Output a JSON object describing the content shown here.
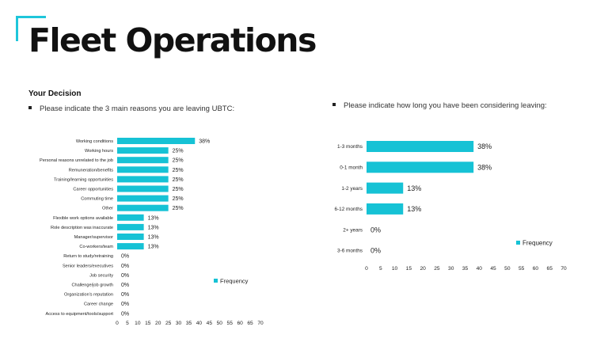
{
  "title": "Fleet Operations",
  "section_heading": "Your Decision",
  "bullet_left": "Please indicate the 3 main reasons you are leaving UBTC:",
  "bullet_right": "Please indicate how long you have been considering leaving:",
  "colors": {
    "accent": "#1ec6da",
    "bar": "#16c2d5"
  },
  "chart_data": [
    {
      "type": "bar",
      "orientation": "horizontal",
      "categories": [
        "Working conditions",
        "Working hours",
        "Personal reasons unrelated to the job",
        "Remuneration/benefits",
        "Training/learning opportunities",
        "Career opportunities",
        "Commuting time",
        "Other",
        "Flexible work options available",
        "Role description was inaccurate",
        "Manager/supervisor",
        "Co-workers/team",
        "Return to study/retraining",
        "Senior leaders/executives",
        "Job security",
        "Challenge/job growth",
        "Organization's reputation",
        "Career change",
        "Access to equipment/tools/support"
      ],
      "series": [
        {
          "name": "Frequency",
          "values": [
            38,
            25,
            25,
            25,
            25,
            25,
            25,
            25,
            13,
            13,
            13,
            13,
            0,
            0,
            0,
            0,
            0,
            0,
            0
          ],
          "labels": [
            "38%",
            "25%",
            "25%",
            "25%",
            "25%",
            "25%",
            "25%",
            "25%",
            "13%",
            "13%",
            "13%",
            "13%",
            "0%",
            "0%",
            "0%",
            "0%",
            "0%",
            "0%",
            "0%"
          ]
        }
      ],
      "xlim": [
        0,
        70
      ],
      "xticks": [
        "0",
        "5",
        "10",
        "15",
        "20",
        "25",
        "30",
        "35",
        "40",
        "45",
        "50",
        "55",
        "60",
        "65",
        "70"
      ],
      "grid": false,
      "legend": "right"
    },
    {
      "type": "bar",
      "orientation": "horizontal",
      "categories": [
        "1-3 months",
        "0-1 month",
        "1-2 years",
        "6-12 months",
        "2+ years",
        "3-6 months"
      ],
      "series": [
        {
          "name": "Frequency",
          "values": [
            38,
            38,
            13,
            13,
            0,
            0
          ],
          "labels": [
            "38%",
            "38%",
            "13%",
            "13%",
            "0%",
            "0%"
          ]
        }
      ],
      "xlim": [
        0,
        70
      ],
      "xticks": [
        "0",
        "5",
        "10",
        "15",
        "20",
        "25",
        "30",
        "35",
        "40",
        "45",
        "50",
        "55",
        "60",
        "65",
        "70"
      ],
      "grid": false,
      "legend": "right"
    }
  ]
}
